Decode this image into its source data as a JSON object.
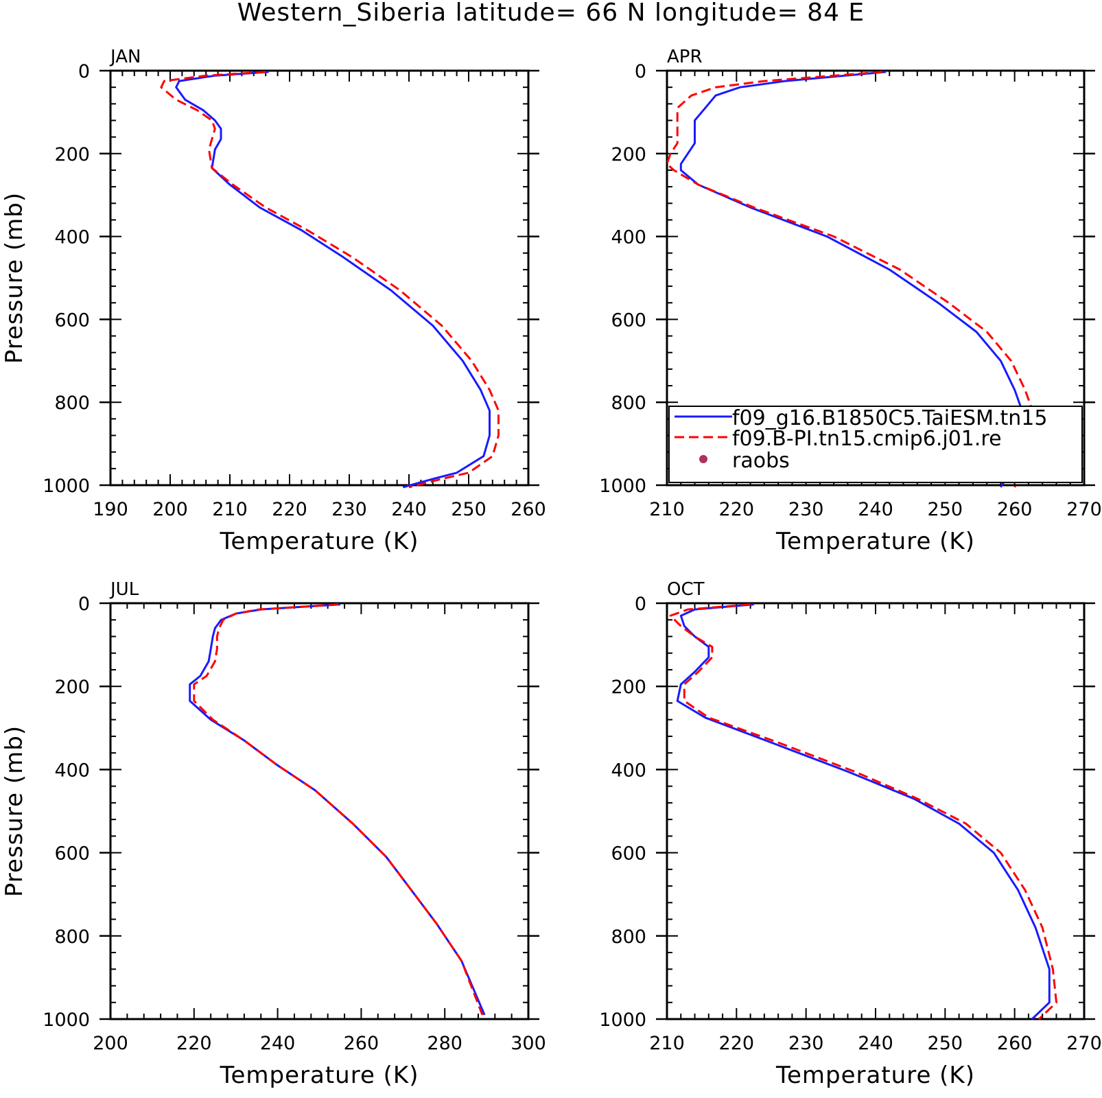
{
  "title": "Western_Siberia  latitude= 66 N longitude= 84 E",
  "colors": {
    "series_1": "#1a1aff",
    "series_2": "#ff0000",
    "raobs": "#b03060"
  },
  "chart_data": [
    {
      "type": "line",
      "panel_label": "JAN",
      "xlabel": "Temperature (K)",
      "ylabel": "Pressure (mb)",
      "xlim": [
        190,
        260
      ],
      "ylim": [
        0,
        1000
      ],
      "y_inverted": true,
      "xticks": [
        190,
        200,
        210,
        220,
        230,
        240,
        250,
        260
      ],
      "yticks": [
        0,
        200,
        400,
        600,
        800,
        1000
      ],
      "series": [
        {
          "name": "f09_g16.B1850C5.TaiESM.tn15",
          "style": "solid",
          "x": [
            216.5,
            207.5,
            201.5,
            201,
            202.5,
            205.5,
            207.5,
            208.5,
            208.5,
            207.5,
            207,
            210,
            215,
            222,
            229,
            237,
            244,
            249,
            252,
            253.5,
            253.5,
            252.5,
            248,
            244,
            239
          ],
          "y": [
            3,
            12,
            25,
            40,
            70,
            95,
            120,
            140,
            165,
            190,
            235,
            275,
            330,
            385,
            450,
            530,
            615,
            700,
            770,
            820,
            880,
            930,
            970,
            985,
            1005
          ]
        },
        {
          "name": "f09.B-PI.tn15.cmip6.j01.re",
          "style": "dashed",
          "x": [
            216,
            206,
            199,
            198.5,
            201,
            204.5,
            207,
            207.5,
            207,
            206.5,
            207,
            210.5,
            216,
            223,
            230.5,
            238.5,
            245.5,
            250.5,
            253.5,
            255,
            255,
            254,
            250,
            245.5,
            240
          ],
          "y": [
            3,
            12,
            25,
            40,
            70,
            95,
            120,
            140,
            165,
            190,
            235,
            275,
            330,
            385,
            450,
            530,
            615,
            700,
            770,
            820,
            880,
            930,
            970,
            985,
            1005
          ]
        }
      ]
    },
    {
      "type": "line",
      "panel_label": "APR",
      "xlabel": "Temperature (K)",
      "ylabel": "",
      "xlim": [
        210,
        270
      ],
      "ylim": [
        0,
        1000
      ],
      "y_inverted": true,
      "xticks": [
        210,
        220,
        230,
        240,
        250,
        260,
        270
      ],
      "yticks": [
        0,
        200,
        400,
        600,
        800,
        1000
      ],
      "legend": {
        "position": "bottom-right",
        "entries": [
          "f09_g16.B1850C5.TaiESM.tn15",
          "f09.B-PI.tn15.cmip6.j01.re",
          "raobs"
        ]
      },
      "series": [
        {
          "name": "f09_g16.B1850C5.TaiESM.tn15",
          "style": "solid",
          "x": [
            241.5,
            227,
            220.5,
            217,
            215.5,
            214,
            214,
            214,
            213,
            212,
            212,
            214.5,
            222,
            233,
            242,
            249,
            254.5,
            258,
            260,
            261.5,
            261.5,
            260,
            258
          ],
          "y": [
            3,
            25,
            40,
            60,
            90,
            120,
            150,
            175,
            200,
            225,
            240,
            275,
            330,
            400,
            480,
            560,
            630,
            700,
            770,
            840,
            900,
            950,
            1005
          ]
        },
        {
          "name": "f09.B-PI.tn15.cmip6.j01.re",
          "style": "dashed",
          "x": [
            241,
            224,
            217,
            213.5,
            211.5,
            211.5,
            211.5,
            211.5,
            210.5,
            210,
            211,
            214.5,
            222.5,
            234,
            243.5,
            250.5,
            256,
            259.5,
            261.5,
            263,
            263,
            261.5,
            260
          ],
          "y": [
            3,
            25,
            40,
            60,
            90,
            120,
            150,
            175,
            200,
            225,
            240,
            275,
            330,
            400,
            480,
            560,
            630,
            700,
            770,
            840,
            900,
            950,
            1005
          ]
        }
      ]
    },
    {
      "type": "line",
      "panel_label": "JUL",
      "xlabel": "Temperature (K)",
      "ylabel": "Pressure (mb)",
      "xlim": [
        200,
        300
      ],
      "ylim": [
        0,
        1000
      ],
      "y_inverted": true,
      "xticks": [
        200,
        220,
        240,
        260,
        280,
        300
      ],
      "yticks": [
        0,
        200,
        400,
        600,
        800,
        1000
      ],
      "series": [
        {
          "name": "f09_g16.B1850C5.TaiESM.tn15",
          "style": "solid",
          "x": [
            255,
            236,
            230,
            226.5,
            225,
            224.5,
            224,
            223.5,
            221.5,
            219,
            219,
            224,
            232,
            240,
            249,
            258,
            266,
            272,
            278,
            284,
            289.5
          ],
          "y": [
            3,
            15,
            25,
            40,
            60,
            80,
            110,
            140,
            175,
            195,
            235,
            280,
            330,
            390,
            450,
            530,
            610,
            690,
            770,
            860,
            990
          ]
        },
        {
          "name": "f09.B-PI.tn15.cmip6.j01.re",
          "style": "dashed",
          "x": [
            254.5,
            235.5,
            230,
            227,
            226,
            225.5,
            225.5,
            225,
            223,
            220,
            220,
            224.5,
            232,
            240,
            249,
            258,
            266,
            272,
            278,
            284,
            289
          ],
          "y": [
            3,
            15,
            25,
            40,
            60,
            80,
            110,
            140,
            175,
            195,
            235,
            280,
            330,
            390,
            450,
            530,
            610,
            690,
            770,
            860,
            990
          ]
        }
      ]
    },
    {
      "type": "line",
      "panel_label": "OCT",
      "xlabel": "Temperature (K)",
      "ylabel": "",
      "xlim": [
        210,
        270
      ],
      "ylim": [
        0,
        1000
      ],
      "y_inverted": true,
      "xticks": [
        210,
        220,
        230,
        240,
        250,
        260,
        270
      ],
      "yticks": [
        0,
        200,
        400,
        600,
        800,
        1000
      ],
      "series": [
        {
          "name": "f09_g16.B1850C5.TaiESM.tn15",
          "style": "solid",
          "x": [
            222.5,
            214,
            212,
            212.5,
            214,
            216,
            216,
            214,
            212,
            211.5,
            215.5,
            225,
            236,
            245.5,
            252,
            257,
            260.5,
            263,
            265,
            265,
            262.5
          ],
          "y": [
            3,
            15,
            30,
            55,
            80,
            105,
            130,
            165,
            195,
            235,
            275,
            335,
            405,
            470,
            530,
            600,
            690,
            780,
            880,
            960,
            1000
          ]
        },
        {
          "name": "f09.B-PI.tn15.cmip6.j01.re",
          "style": "dashed",
          "x": [
            222,
            213,
            210.5,
            212,
            214,
            216.5,
            216.5,
            214.5,
            212.5,
            212.5,
            216,
            226,
            237,
            246,
            253,
            258,
            261.5,
            264,
            265.5,
            266,
            263.5
          ],
          "y": [
            3,
            15,
            30,
            55,
            80,
            105,
            130,
            165,
            195,
            235,
            275,
            335,
            405,
            470,
            530,
            600,
            690,
            780,
            880,
            960,
            1000
          ]
        }
      ]
    }
  ]
}
